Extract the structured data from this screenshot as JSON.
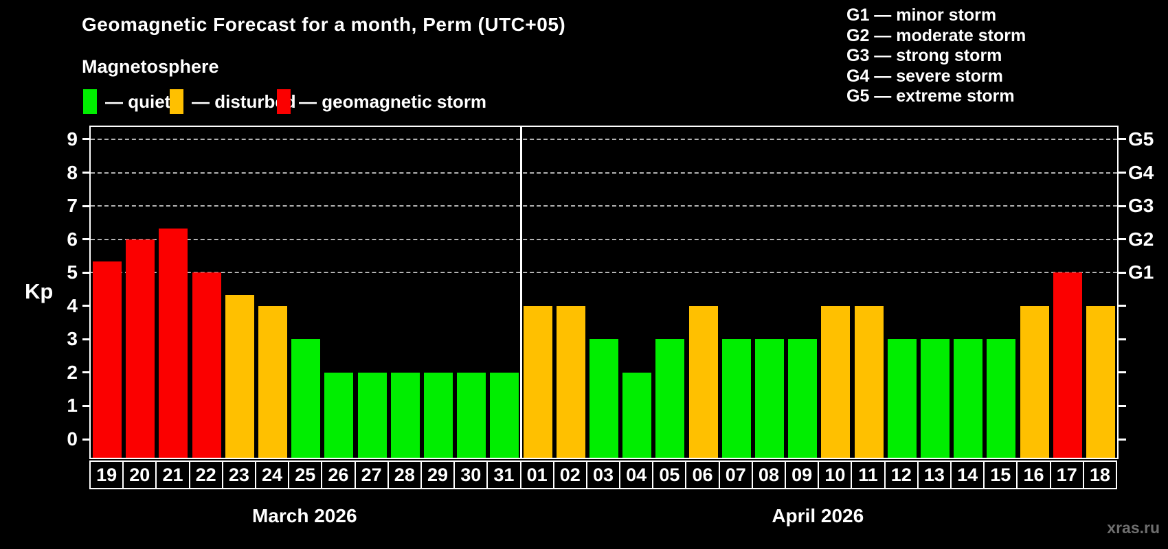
{
  "title": "Geomagnetic Forecast for a month, Perm (UTC+05)",
  "subtitle": "Magnetosphere",
  "legend": {
    "items": [
      {
        "label": "— quiet",
        "state": "quiet",
        "color": "#00ee00"
      },
      {
        "label": "— disturbed",
        "state": "disturbed",
        "color": "#ffc000"
      },
      {
        "label": "— geomagnetic storm",
        "state": "storm",
        "color": "#fb0000"
      }
    ]
  },
  "g_legend": [
    "G1 — minor storm",
    "G2 — moderate storm",
    "G3 — strong storm",
    "G4 — severe storm",
    "G5 — extreme storm"
  ],
  "y_axis": {
    "label": "Kp",
    "ticks": [
      0,
      1,
      2,
      3,
      4,
      5,
      6,
      7,
      8,
      9
    ]
  },
  "watermark": "xras.ru",
  "chart_data": {
    "type": "bar",
    "title": "Geomagnetic Forecast for a month, Perm (UTC+05)",
    "ylabel": "Kp",
    "ylim": [
      0,
      9
    ],
    "grid": "dashed horizontal lines at Kp 5-9 only",
    "y_gridlines_at": [
      5,
      6,
      7,
      8,
      9
    ],
    "right_axis_labels": [
      {
        "text": "G1",
        "kp": 5
      },
      {
        "text": "G2",
        "kp": 6
      },
      {
        "text": "G3",
        "kp": 7
      },
      {
        "text": "G4",
        "kp": 8
      },
      {
        "text": "G5",
        "kp": 9
      }
    ],
    "state_colors": {
      "quiet": "#00ee00",
      "disturbed": "#ffc000",
      "storm": "#fb0000"
    },
    "months": [
      {
        "label": "March 2026",
        "days": [
          "19",
          "20",
          "21",
          "22",
          "23",
          "24",
          "25",
          "26",
          "27",
          "28",
          "29",
          "30",
          "31"
        ],
        "values": [
          5.33,
          6,
          6.33,
          5,
          4.33,
          4,
          3,
          2,
          2,
          2,
          2,
          2,
          2
        ],
        "states": [
          "storm",
          "storm",
          "storm",
          "storm",
          "disturbed",
          "disturbed",
          "quiet",
          "quiet",
          "quiet",
          "quiet",
          "quiet",
          "quiet",
          "quiet"
        ]
      },
      {
        "label": "April 2026",
        "days": [
          "01",
          "02",
          "03",
          "04",
          "05",
          "06",
          "07",
          "08",
          "09",
          "10",
          "11",
          "12",
          "13",
          "14",
          "15",
          "16",
          "17",
          "18"
        ],
        "values": [
          4,
          4,
          3,
          2,
          3,
          4,
          3,
          3,
          3,
          4,
          4,
          3,
          3,
          3,
          3,
          4,
          5,
          4
        ],
        "states": [
          "disturbed",
          "disturbed",
          "quiet",
          "quiet",
          "quiet",
          "disturbed",
          "quiet",
          "quiet",
          "quiet",
          "disturbed",
          "disturbed",
          "quiet",
          "quiet",
          "quiet",
          "quiet",
          "disturbed",
          "storm",
          "disturbed"
        ]
      }
    ]
  }
}
